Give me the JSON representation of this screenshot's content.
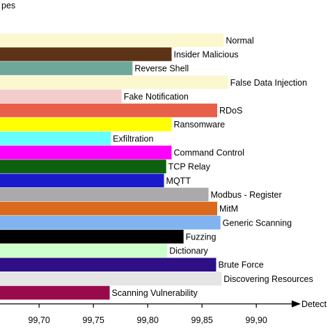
{
  "chart_data": {
    "type": "bar",
    "orientation": "horizontal",
    "ylabel": "pes",
    "xlabel": "Detect",
    "xlim": [
      99.68,
      99.93
    ],
    "x_ticks": [
      {
        "value": 99.7,
        "label": "99,70"
      },
      {
        "value": 99.75,
        "label": "99,75"
      },
      {
        "value": 99.8,
        "label": "99,80"
      },
      {
        "value": 99.85,
        "label": "99,85"
      },
      {
        "value": 99.9,
        "label": "99,90"
      }
    ],
    "grid": false,
    "categories": [
      "Normal",
      "Insider Malicious",
      "Reverse Shell",
      "False Data Injection",
      "Fake Notification",
      "RDoS",
      "Ransomware",
      "Exfiltration",
      "Command Control",
      "TCP Relay",
      "MQTT",
      "Modbus - Register",
      "MitM",
      "Generic Scanning",
      "Fuzzing",
      "Dictionary",
      "Brute Force",
      "Discovering Resources",
      "Scanning Vulnerability"
    ],
    "values": [
      99.87,
      99.822,
      99.786,
      99.874,
      99.776,
      99.864,
      99.822,
      99.766,
      99.822,
      99.817,
      99.815,
      99.856,
      99.864,
      99.867,
      99.833,
      99.818,
      99.863,
      99.868,
      99.765
    ],
    "colors": [
      "#fbf7cf",
      "#5c3316",
      "#6fa89a",
      "#fbf7cf",
      "#f3cccc",
      "#e8604a",
      "#ffff00",
      "#66ffff",
      "#ff00ff",
      "#0d600d",
      "#1a1acc",
      "#aaaaaa",
      "#d96a1e",
      "#80b3f0",
      "#000000",
      "#ccffcc",
      "#2e0f85",
      "#e5e5e5",
      "#990a4a"
    ]
  }
}
